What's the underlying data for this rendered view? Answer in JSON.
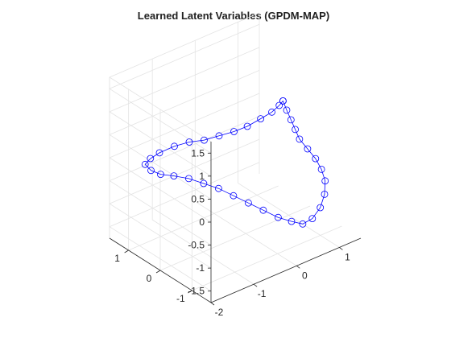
{
  "chart_data": {
    "type": "scatter",
    "title": "Learned Latent Variables (GPDM-MAP)",
    "xlabel": "",
    "ylabel": "",
    "zlabel": "",
    "projection": "3d",
    "grid": true,
    "marker": "circle",
    "connected": true,
    "axes": {
      "x_ticks": [
        "-2",
        "-1",
        "0",
        "1"
      ],
      "y_ticks": [
        "-1",
        "0",
        "1"
      ],
      "z_ticks": [
        "-1.5",
        "-1",
        "-0.5",
        "0",
        "0.5",
        "1",
        "1.5"
      ]
    },
    "xlim": [
      -2,
      1.5
    ],
    "ylim": [
      -1.6,
      1.6
    ],
    "zlim": [
      -1.75,
      1.75
    ],
    "series": [
      {
        "color": "#0000ff",
        "points": [
          {
            "x": 0.2,
            "y": -0.9,
            "z": 1.45
          },
          {
            "x": 0.15,
            "y": -0.85,
            "z": 1.35
          },
          {
            "x": 0.05,
            "y": -0.75,
            "z": 1.2
          },
          {
            "x": -0.1,
            "y": -0.6,
            "z": 1.05
          },
          {
            "x": -0.3,
            "y": -0.45,
            "z": 0.9
          },
          {
            "x": -0.5,
            "y": -0.3,
            "z": 0.8
          },
          {
            "x": -0.7,
            "y": -0.1,
            "z": 0.7
          },
          {
            "x": -0.9,
            "y": 0.1,
            "z": 0.6
          },
          {
            "x": -1.1,
            "y": 0.3,
            "z": 0.55
          },
          {
            "x": -1.3,
            "y": 0.5,
            "z": 0.45
          },
          {
            "x": -1.5,
            "y": 0.7,
            "z": 0.3
          },
          {
            "x": -1.6,
            "y": 0.85,
            "z": 0.15
          },
          {
            "x": -1.65,
            "y": 0.95,
            "z": 0.0
          },
          {
            "x": -1.55,
            "y": 0.9,
            "z": -0.15
          },
          {
            "x": -1.4,
            "y": 0.8,
            "z": -0.25
          },
          {
            "x": -1.2,
            "y": 0.65,
            "z": -0.3
          },
          {
            "x": -1.0,
            "y": 0.45,
            "z": -0.35
          },
          {
            "x": -0.8,
            "y": 0.25,
            "z": -0.45
          },
          {
            "x": -0.6,
            "y": 0.05,
            "z": -0.55
          },
          {
            "x": -0.4,
            "y": -0.15,
            "z": -0.7
          },
          {
            "x": -0.2,
            "y": -0.35,
            "z": -0.85
          },
          {
            "x": 0.0,
            "y": -0.55,
            "z": -1.0
          },
          {
            "x": 0.2,
            "y": -0.75,
            "z": -1.15
          },
          {
            "x": 0.4,
            "y": -0.9,
            "z": -1.25
          },
          {
            "x": 0.55,
            "y": -1.05,
            "z": -1.3
          },
          {
            "x": 0.7,
            "y": -1.15,
            "z": -1.2
          },
          {
            "x": 0.85,
            "y": -1.2,
            "z": -1.0
          },
          {
            "x": 0.95,
            "y": -1.2,
            "z": -0.75
          },
          {
            "x": 1.0,
            "y": -1.15,
            "z": -0.5
          },
          {
            "x": 0.95,
            "y": -1.1,
            "z": -0.25
          },
          {
            "x": 0.85,
            "y": -1.05,
            "z": 0.0
          },
          {
            "x": 0.7,
            "y": -1.0,
            "z": 0.25
          },
          {
            "x": 0.55,
            "y": -0.95,
            "z": 0.5
          },
          {
            "x": 0.45,
            "y": -0.95,
            "z": 0.75
          },
          {
            "x": 0.35,
            "y": -0.95,
            "z": 1.0
          },
          {
            "x": 0.25,
            "y": -0.95,
            "z": 1.25
          },
          {
            "x": 0.2,
            "y": -0.9,
            "z": 1.45
          }
        ]
      }
    ]
  }
}
